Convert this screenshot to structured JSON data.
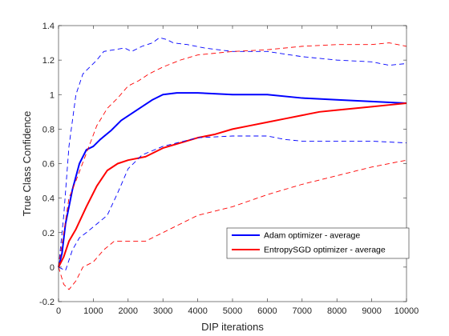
{
  "chart_data": {
    "type": "line",
    "title": "",
    "xlabel": "DIP iterations",
    "ylabel": "True Class Confidence",
    "xlim": [
      0,
      10000
    ],
    "ylim": [
      -0.2,
      1.4
    ],
    "xticks": [
      0,
      1000,
      2000,
      3000,
      4000,
      5000,
      6000,
      7000,
      8000,
      9000,
      10000
    ],
    "yticks": [
      -0.2,
      0,
      0.2,
      0.4,
      0.6,
      0.8,
      1,
      1.2,
      1.4
    ],
    "xtick_labels": [
      "0",
      "1000",
      "2000",
      "3000",
      "4000",
      "5000",
      "6000",
      "7000",
      "8000",
      "9000",
      "10000"
    ],
    "ytick_labels": [
      "-0.2",
      "0",
      "0.2",
      "0.4",
      "0.6",
      "0.8",
      "1",
      "1.2",
      "1.4"
    ],
    "grid": false,
    "box": true,
    "legend_position": "bottom-right",
    "legend": [
      "Adam optimizer - average",
      "EntropySGD optimizer - average"
    ],
    "series": [
      {
        "name": "Adam optimizer - average",
        "color": "#0000ff",
        "style": "solid",
        "points": [
          [
            0,
            0
          ],
          [
            100,
            0.08
          ],
          [
            200,
            0.25
          ],
          [
            400,
            0.45
          ],
          [
            600,
            0.6
          ],
          [
            800,
            0.68
          ],
          [
            1000,
            0.7
          ],
          [
            1200,
            0.74
          ],
          [
            1500,
            0.79
          ],
          [
            1800,
            0.85
          ],
          [
            2100,
            0.89
          ],
          [
            2400,
            0.93
          ],
          [
            2700,
            0.97
          ],
          [
            3000,
            1.0
          ],
          [
            3400,
            1.01
          ],
          [
            4000,
            1.01
          ],
          [
            5000,
            1.0
          ],
          [
            6000,
            1.0
          ],
          [
            7000,
            0.98
          ],
          [
            8000,
            0.97
          ],
          [
            9000,
            0.96
          ],
          [
            10000,
            0.95
          ]
        ]
      },
      {
        "name": "EntropySGD optimizer - average",
        "color": "#ff0000",
        "style": "solid",
        "points": [
          [
            0,
            0
          ],
          [
            150,
            0.06
          ],
          [
            300,
            0.15
          ],
          [
            500,
            0.22
          ],
          [
            800,
            0.35
          ],
          [
            1100,
            0.47
          ],
          [
            1400,
            0.56
          ],
          [
            1700,
            0.6
          ],
          [
            2000,
            0.62
          ],
          [
            2500,
            0.64
          ],
          [
            3000,
            0.69
          ],
          [
            3500,
            0.72
          ],
          [
            4000,
            0.75
          ],
          [
            4500,
            0.77
          ],
          [
            5000,
            0.8
          ],
          [
            5500,
            0.82
          ],
          [
            6000,
            0.84
          ],
          [
            6500,
            0.86
          ],
          [
            7000,
            0.88
          ],
          [
            7500,
            0.9
          ],
          [
            8000,
            0.91
          ],
          [
            8500,
            0.92
          ],
          [
            9000,
            0.93
          ],
          [
            9500,
            0.94
          ],
          [
            10000,
            0.95
          ]
        ]
      },
      {
        "color": "#0000ff",
        "style": "dashed",
        "points": [
          [
            0,
            0
          ],
          [
            150,
            0.3
          ],
          [
            300,
            0.7
          ],
          [
            500,
            1.0
          ],
          [
            700,
            1.12
          ],
          [
            900,
            1.16
          ],
          [
            1100,
            1.2
          ],
          [
            1300,
            1.25
          ],
          [
            1600,
            1.26
          ],
          [
            1900,
            1.27
          ],
          [
            2100,
            1.25
          ],
          [
            2400,
            1.28
          ],
          [
            2700,
            1.3
          ],
          [
            2900,
            1.33
          ],
          [
            3100,
            1.32
          ],
          [
            3300,
            1.3
          ],
          [
            3700,
            1.29
          ],
          [
            4200,
            1.27
          ],
          [
            5000,
            1.25
          ],
          [
            6000,
            1.25
          ],
          [
            7000,
            1.22
          ],
          [
            8000,
            1.2
          ],
          [
            9000,
            1.19
          ],
          [
            9500,
            1.17
          ],
          [
            10000,
            1.18
          ]
        ]
      },
      {
        "color": "#0000ff",
        "style": "dashed",
        "points": [
          [
            0,
            0
          ],
          [
            200,
            -0.02
          ],
          [
            400,
            0.1
          ],
          [
            600,
            0.17
          ],
          [
            800,
            0.2
          ],
          [
            1100,
            0.25
          ],
          [
            1400,
            0.3
          ],
          [
            1700,
            0.43
          ],
          [
            2000,
            0.57
          ],
          [
            2400,
            0.65
          ],
          [
            3000,
            0.7
          ],
          [
            4000,
            0.75
          ],
          [
            5000,
            0.76
          ],
          [
            6000,
            0.76
          ],
          [
            6500,
            0.74
          ],
          [
            7000,
            0.73
          ],
          [
            8000,
            0.73
          ],
          [
            9000,
            0.73
          ],
          [
            10000,
            0.72
          ]
        ]
      },
      {
        "color": "#ff0000",
        "style": "dashed",
        "points": [
          [
            0,
            0
          ],
          [
            150,
            0.2
          ],
          [
            300,
            0.4
          ],
          [
            500,
            0.5
          ],
          [
            800,
            0.66
          ],
          [
            1100,
            0.82
          ],
          [
            1400,
            0.92
          ],
          [
            1700,
            0.98
          ],
          [
            2000,
            1.05
          ],
          [
            2300,
            1.08
          ],
          [
            2600,
            1.12
          ],
          [
            3000,
            1.16
          ],
          [
            3500,
            1.2
          ],
          [
            4000,
            1.23
          ],
          [
            5000,
            1.25
          ],
          [
            6000,
            1.26
          ],
          [
            7000,
            1.28
          ],
          [
            8000,
            1.29
          ],
          [
            9000,
            1.29
          ],
          [
            9500,
            1.3
          ],
          [
            10000,
            1.28
          ]
        ]
      },
      {
        "color": "#ff0000",
        "style": "dashed",
        "points": [
          [
            0,
            0
          ],
          [
            150,
            -0.1
          ],
          [
            300,
            -0.13
          ],
          [
            500,
            -0.08
          ],
          [
            700,
            0.0
          ],
          [
            1000,
            0.03
          ],
          [
            1300,
            0.1
          ],
          [
            1600,
            0.15
          ],
          [
            2000,
            0.15
          ],
          [
            2500,
            0.15
          ],
          [
            3000,
            0.2
          ],
          [
            3500,
            0.25
          ],
          [
            4000,
            0.3
          ],
          [
            5000,
            0.35
          ],
          [
            6000,
            0.42
          ],
          [
            7000,
            0.48
          ],
          [
            8000,
            0.53
          ],
          [
            9000,
            0.58
          ],
          [
            10000,
            0.62
          ]
        ]
      }
    ]
  }
}
